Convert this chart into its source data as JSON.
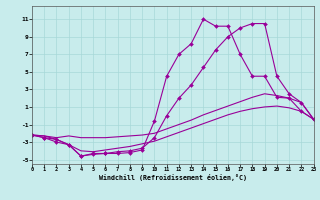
{
  "xlabel": "Windchill (Refroidissement éolien,°C)",
  "bg_color": "#c8ecec",
  "grid_color": "#a8d8d8",
  "line_color": "#990099",
  "xlim": [
    0,
    23
  ],
  "ylim": [
    -5.5,
    12.5
  ],
  "xticks": [
    0,
    1,
    2,
    3,
    4,
    5,
    6,
    7,
    8,
    9,
    10,
    11,
    12,
    13,
    14,
    15,
    16,
    17,
    18,
    19,
    20,
    21,
    22,
    23
  ],
  "yticks": [
    -5,
    -3,
    -1,
    1,
    3,
    5,
    7,
    9,
    11
  ],
  "curve1_x": [
    0,
    1,
    2,
    3,
    4,
    5,
    6,
    7,
    8,
    9,
    10,
    11,
    12,
    13,
    14,
    15,
    16,
    17,
    18,
    19,
    20,
    21,
    22,
    23
  ],
  "curve1_y": [
    -2.2,
    -2.5,
    -2.7,
    -3.3,
    -4.6,
    -4.4,
    -4.3,
    -4.3,
    -4.2,
    -3.9,
    -0.6,
    4.5,
    7.0,
    8.2,
    11.0,
    10.2,
    10.2,
    7.0,
    4.5,
    4.5,
    2.1,
    2.0,
    0.5,
    -0.4
  ],
  "curve2_x": [
    0,
    1,
    2,
    3,
    4,
    5,
    6,
    7,
    8,
    9,
    10,
    11,
    12,
    13,
    14,
    15,
    16,
    17,
    18,
    19,
    20,
    21,
    22,
    23
  ],
  "curve2_y": [
    -2.2,
    -2.5,
    -3.0,
    -3.3,
    -4.6,
    -4.3,
    -4.3,
    -4.1,
    -4.0,
    -3.7,
    -2.5,
    0.0,
    2.0,
    3.5,
    5.5,
    7.5,
    9.0,
    10.0,
    10.5,
    10.5,
    4.5,
    2.5,
    1.5,
    -0.4
  ],
  "curve3_x": [
    0,
    1,
    2,
    3,
    4,
    5,
    6,
    7,
    8,
    9,
    10,
    11,
    12,
    13,
    14,
    15,
    16,
    17,
    18,
    19,
    20,
    21,
    22,
    23
  ],
  "curve3_y": [
    -2.2,
    -2.3,
    -2.5,
    -2.3,
    -2.5,
    -2.5,
    -2.5,
    -2.4,
    -2.3,
    -2.2,
    -2.0,
    -1.5,
    -1.0,
    -0.5,
    0.1,
    0.6,
    1.1,
    1.6,
    2.1,
    2.5,
    2.3,
    2.0,
    1.5,
    -0.4
  ],
  "curve4_x": [
    0,
    1,
    2,
    3,
    4,
    5,
    6,
    7,
    8,
    9,
    10,
    11,
    12,
    13,
    14,
    15,
    16,
    17,
    18,
    19,
    20,
    21,
    22,
    23
  ],
  "curve4_y": [
    -2.2,
    -2.3,
    -2.7,
    -3.3,
    -4.0,
    -4.1,
    -3.9,
    -3.7,
    -3.5,
    -3.2,
    -2.9,
    -2.4,
    -1.9,
    -1.4,
    -0.9,
    -0.4,
    0.1,
    0.5,
    0.8,
    1.0,
    1.1,
    0.9,
    0.5,
    -0.4
  ]
}
